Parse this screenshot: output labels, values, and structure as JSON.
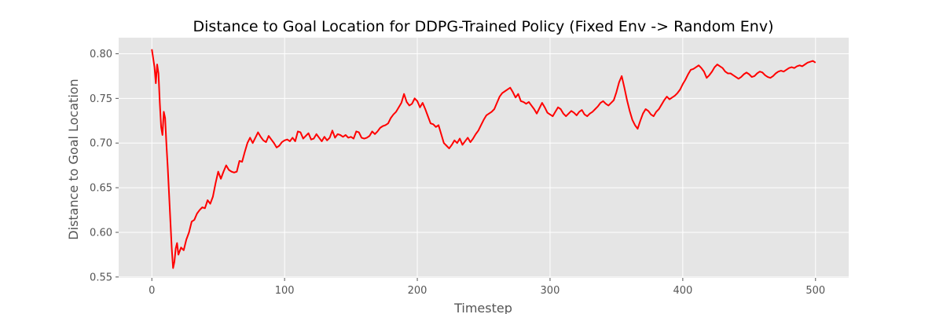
{
  "chart_data": {
    "type": "line",
    "title": "Distance to Goal Location for DDPG-Trained Policy (Fixed Env -> Random Env)",
    "xlabel": "Timestep",
    "ylabel": "Distance to Goal Location",
    "xlim": [
      -25,
      525
    ],
    "ylim": [
      0.549,
      0.818
    ],
    "grid": true,
    "x_ticks": [
      {
        "value": 0,
        "label": "0"
      },
      {
        "value": 100,
        "label": "100"
      },
      {
        "value": 200,
        "label": "200"
      },
      {
        "value": 300,
        "label": "300"
      },
      {
        "value": 400,
        "label": "400"
      },
      {
        "value": 500,
        "label": "500"
      }
    ],
    "y_ticks": [
      {
        "value": 0.55,
        "label": "0.55"
      },
      {
        "value": 0.6,
        "label": "0.60"
      },
      {
        "value": 0.65,
        "label": "0.65"
      },
      {
        "value": 0.7,
        "label": "0.70"
      },
      {
        "value": 0.75,
        "label": "0.75"
      },
      {
        "value": 0.8,
        "label": "0.80"
      }
    ],
    "colors": {
      "line": "#ff0000",
      "plot_background": "#e5e5e5",
      "grid": "#ffffff",
      "tick_text": "#555555"
    },
    "series": [
      {
        "x": [
          0,
          2,
          3,
          4,
          5,
          6,
          7,
          8,
          9,
          10,
          11,
          12,
          13,
          14,
          15,
          16,
          17,
          18,
          19,
          20,
          22,
          24,
          26,
          28,
          30,
          32,
          34,
          36,
          38,
          40,
          42,
          44,
          46,
          48,
          50,
          52,
          54,
          56,
          58,
          60,
          62,
          64,
          66,
          68,
          70,
          72,
          74,
          76,
          78,
          80,
          82,
          84,
          86,
          88,
          90,
          92,
          94,
          96,
          98,
          100,
          102,
          104,
          106,
          108,
          110,
          112,
          114,
          116,
          118,
          120,
          122,
          124,
          126,
          128,
          130,
          132,
          134,
          136,
          138,
          140,
          142,
          144,
          146,
          148,
          150,
          152,
          154,
          156,
          158,
          160,
          162,
          164,
          166,
          168,
          170,
          172,
          174,
          176,
          178,
          180,
          182,
          184,
          186,
          188,
          190,
          192,
          194,
          196,
          198,
          200,
          202,
          204,
          206,
          208,
          210,
          212,
          214,
          216,
          218,
          220,
          222,
          224,
          226,
          228,
          230,
          232,
          234,
          236,
          238,
          240,
          242,
          244,
          246,
          248,
          250,
          252,
          254,
          256,
          258,
          260,
          262,
          264,
          266,
          268,
          270,
          272,
          274,
          276,
          278,
          280,
          282,
          284,
          286,
          288,
          290,
          292,
          294,
          296,
          298,
          300,
          302,
          304,
          306,
          308,
          310,
          312,
          314,
          316,
          318,
          320,
          322,
          324,
          326,
          328,
          330,
          332,
          334,
          336,
          338,
          340,
          342,
          344,
          346,
          348,
          350,
          352,
          354,
          356,
          358,
          360,
          362,
          364,
          366,
          368,
          370,
          372,
          374,
          376,
          378,
          380,
          382,
          384,
          386,
          388,
          390,
          392,
          394,
          396,
          398,
          400,
          402,
          404,
          406,
          408,
          410,
          412,
          414,
          416,
          418,
          420,
          422,
          424,
          426,
          428,
          430,
          432,
          434,
          436,
          438,
          440,
          442,
          444,
          446,
          448,
          450,
          452,
          454,
          456,
          458,
          460,
          462,
          464,
          466,
          468,
          470,
          472,
          474,
          476,
          478,
          480,
          482,
          484,
          486,
          488,
          490,
          492,
          494,
          496,
          498,
          500
        ],
        "y": [
          0.805,
          0.785,
          0.767,
          0.788,
          0.778,
          0.745,
          0.718,
          0.709,
          0.735,
          0.728,
          0.698,
          0.672,
          0.642,
          0.612,
          0.582,
          0.56,
          0.567,
          0.582,
          0.588,
          0.575,
          0.583,
          0.58,
          0.592,
          0.6,
          0.612,
          0.614,
          0.621,
          0.625,
          0.628,
          0.627,
          0.636,
          0.632,
          0.64,
          0.655,
          0.668,
          0.66,
          0.668,
          0.675,
          0.67,
          0.668,
          0.667,
          0.668,
          0.68,
          0.679,
          0.69,
          0.7,
          0.706,
          0.7,
          0.706,
          0.712,
          0.707,
          0.703,
          0.701,
          0.708,
          0.704,
          0.7,
          0.695,
          0.697,
          0.701,
          0.703,
          0.704,
          0.702,
          0.706,
          0.702,
          0.713,
          0.712,
          0.705,
          0.708,
          0.711,
          0.704,
          0.705,
          0.71,
          0.706,
          0.702,
          0.707,
          0.703,
          0.706,
          0.714,
          0.706,
          0.71,
          0.709,
          0.707,
          0.709,
          0.706,
          0.707,
          0.705,
          0.713,
          0.712,
          0.706,
          0.705,
          0.706,
          0.708,
          0.713,
          0.71,
          0.713,
          0.717,
          0.719,
          0.72,
          0.722,
          0.728,
          0.732,
          0.735,
          0.74,
          0.745,
          0.755,
          0.746,
          0.742,
          0.744,
          0.75,
          0.747,
          0.74,
          0.745,
          0.738,
          0.73,
          0.722,
          0.721,
          0.718,
          0.72,
          0.71,
          0.7,
          0.697,
          0.694,
          0.698,
          0.703,
          0.7,
          0.705,
          0.698,
          0.702,
          0.706,
          0.701,
          0.705,
          0.71,
          0.714,
          0.72,
          0.726,
          0.731,
          0.733,
          0.735,
          0.738,
          0.745,
          0.752,
          0.756,
          0.758,
          0.76,
          0.762,
          0.757,
          0.751,
          0.755,
          0.747,
          0.746,
          0.744,
          0.746,
          0.742,
          0.738,
          0.733,
          0.739,
          0.745,
          0.74,
          0.734,
          0.732,
          0.73,
          0.735,
          0.74,
          0.738,
          0.733,
          0.73,
          0.733,
          0.736,
          0.734,
          0.731,
          0.735,
          0.737,
          0.732,
          0.73,
          0.733,
          0.735,
          0.738,
          0.741,
          0.745,
          0.747,
          0.744,
          0.742,
          0.745,
          0.748,
          0.757,
          0.768,
          0.775,
          0.762,
          0.748,
          0.736,
          0.726,
          0.72,
          0.716,
          0.725,
          0.733,
          0.738,
          0.736,
          0.732,
          0.73,
          0.735,
          0.738,
          0.743,
          0.748,
          0.752,
          0.749,
          0.751,
          0.753,
          0.756,
          0.76,
          0.766,
          0.771,
          0.777,
          0.782,
          0.783,
          0.785,
          0.787,
          0.784,
          0.78,
          0.773,
          0.776,
          0.78,
          0.785,
          0.788,
          0.786,
          0.784,
          0.78,
          0.778,
          0.778,
          0.776,
          0.774,
          0.772,
          0.774,
          0.777,
          0.779,
          0.777,
          0.774,
          0.775,
          0.778,
          0.78,
          0.779,
          0.776,
          0.774,
          0.773,
          0.775,
          0.778,
          0.78,
          0.781,
          0.78,
          0.782,
          0.784,
          0.785,
          0.784,
          0.786,
          0.787,
          0.786,
          0.788,
          0.79,
          0.791,
          0.792,
          0.79
        ]
      }
    ]
  }
}
